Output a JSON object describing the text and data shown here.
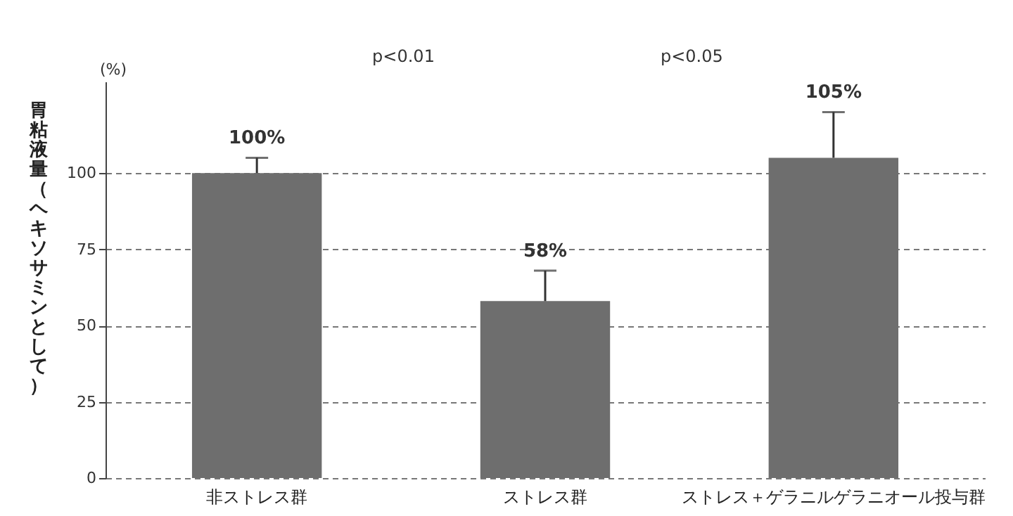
{
  "chart_data": {
    "type": "bar",
    "categories": [
      "非ストレス群",
      "ストレス群",
      "ストレス＋ゲラニルゲラニオール投与群"
    ],
    "values": [
      100,
      58,
      105
    ],
    "color": "#6e6e6e",
    "errors": [
      [
        100,
        105
      ],
      [
        58,
        68
      ],
      [
        105,
        120
      ]
    ],
    "value_labels": [
      "100%",
      "58%",
      "105%"
    ],
    "ylabel": "胃粘液量（ヘキソサミンとして）",
    "ylim": [
      0,
      130
    ],
    "yticks": [
      0,
      25,
      50,
      75,
      100
    ],
    "grid": "y",
    "annotations": [
      "p<0.01",
      "p<0.05",
      "(%)"
    ]
  }
}
